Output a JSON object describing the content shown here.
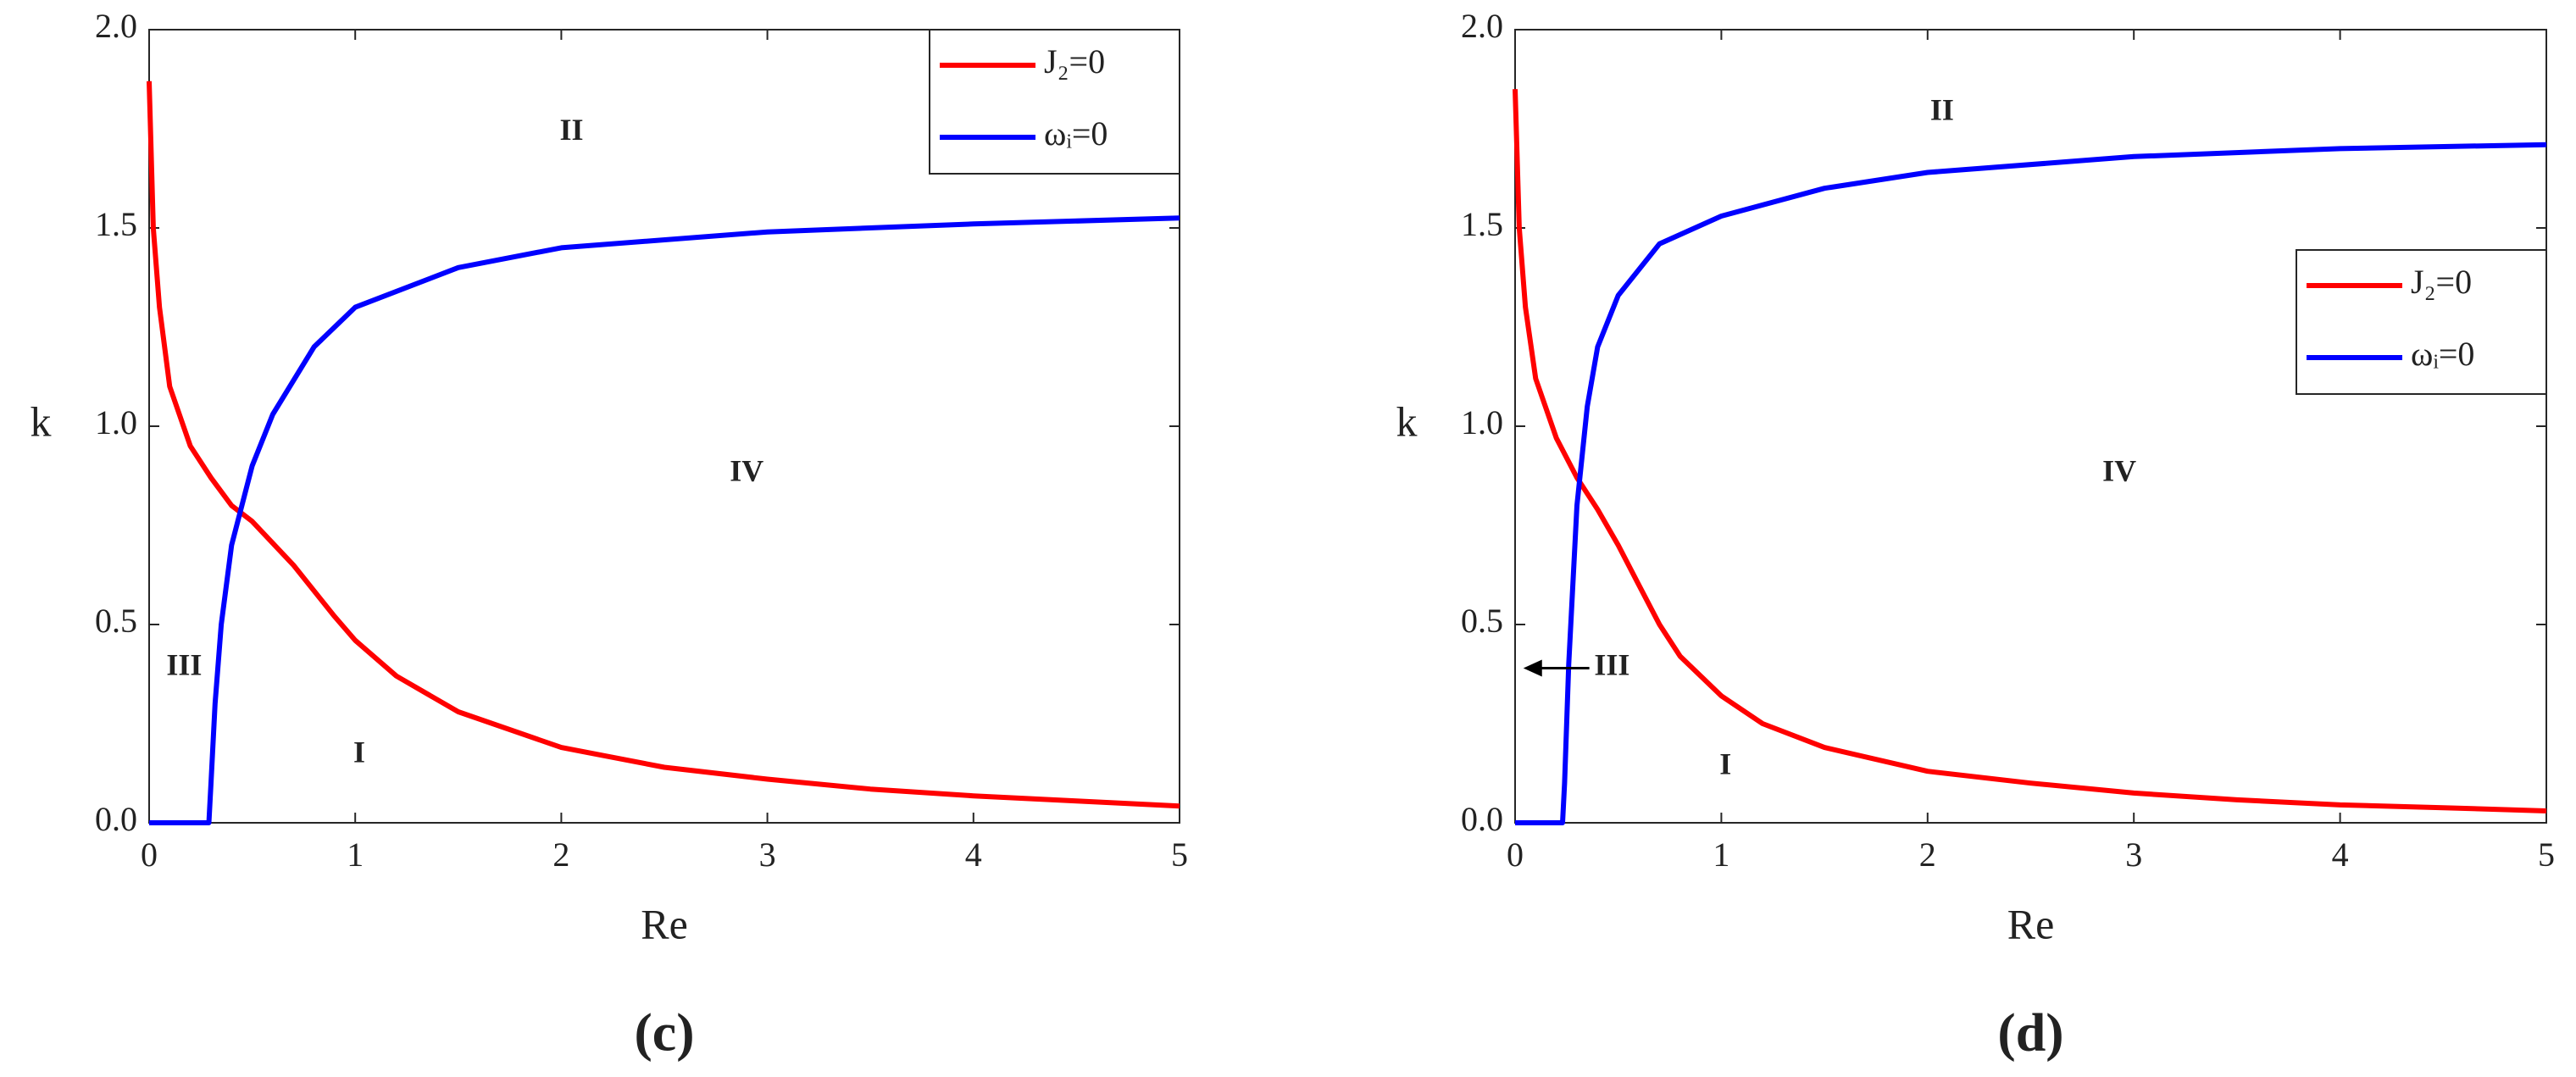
{
  "chart_data": [
    {
      "type": "line",
      "caption": "(c)",
      "x_label": "Re",
      "y_label": "k",
      "xlim": [
        0,
        5
      ],
      "xticks": [
        0,
        1,
        2,
        3,
        4,
        5
      ],
      "ylim": [
        0,
        2
      ],
      "yticks": [
        {
          "value": 0,
          "label": "0.0"
        },
        {
          "value": 0.5,
          "label": "0.5"
        },
        {
          "value": 1,
          "label": "1.0"
        },
        {
          "value": 1.5,
          "label": "1.5"
        },
        {
          "value": 2,
          "label": "2.0"
        }
      ],
      "legend": "upper right",
      "annotations": [
        "II",
        "III",
        "I",
        "IV"
      ],
      "series": [
        {
          "name": "J₂=0",
          "color": "#ff0000",
          "x": [
            0,
            0.02,
            0.05,
            0.1,
            0.2,
            0.3,
            0.4,
            0.5,
            0.7,
            0.9,
            1.0,
            1.2,
            1.5,
            2,
            2.5,
            3,
            3.5,
            4,
            4.5,
            5
          ],
          "values": [
            1.87,
            1.5,
            1.3,
            1.1,
            0.95,
            0.87,
            0.8,
            0.76,
            0.65,
            0.52,
            0.46,
            0.37,
            0.28,
            0.19,
            0.14,
            0.11,
            0.085,
            0.068,
            0.055,
            0.042
          ]
        },
        {
          "name": "ωᵢ=0",
          "color": "#0000ff",
          "x": [
            0,
            0.29,
            0.3,
            0.32,
            0.35,
            0.4,
            0.5,
            0.6,
            0.8,
            1,
            1.5,
            2,
            3,
            4,
            5
          ],
          "values": [
            0,
            0,
            0.1,
            0.3,
            0.5,
            0.7,
            0.9,
            1.03,
            1.2,
            1.3,
            1.4,
            1.45,
            1.49,
            1.51,
            1.525
          ]
        }
      ]
    },
    {
      "type": "line",
      "caption": "(d)",
      "x_label": "Re",
      "y_label": "k",
      "xlim": [
        0,
        5
      ],
      "xticks": [
        0,
        1,
        2,
        3,
        4,
        5
      ],
      "ylim": [
        0,
        2
      ],
      "yticks": [
        {
          "value": 0,
          "label": "0.0"
        },
        {
          "value": 0.5,
          "label": "0.5"
        },
        {
          "value": 1,
          "label": "1.0"
        },
        {
          "value": 1.5,
          "label": "1.5"
        },
        {
          "value": 2,
          "label": "2.0"
        }
      ],
      "legend": "center right",
      "annotations": [
        "II",
        "III",
        "I",
        "IV"
      ],
      "series": [
        {
          "name": "J₂=0",
          "color": "#ff0000",
          "x": [
            0,
            0.02,
            0.05,
            0.1,
            0.2,
            0.3,
            0.4,
            0.5,
            0.6,
            0.7,
            0.8,
            1.0,
            1.2,
            1.5,
            2,
            2.5,
            3,
            3.5,
            4,
            4.5,
            5
          ],
          "values": [
            1.85,
            1.5,
            1.3,
            1.12,
            0.97,
            0.87,
            0.79,
            0.7,
            0.6,
            0.5,
            0.42,
            0.32,
            0.25,
            0.19,
            0.13,
            0.1,
            0.075,
            0.058,
            0.045,
            0.038,
            0.03
          ]
        },
        {
          "name": "ωᵢ=0",
          "color": "#0000ff",
          "x": [
            0,
            0.23,
            0.24,
            0.26,
            0.3,
            0.35,
            0.4,
            0.5,
            0.7,
            1,
            1.5,
            2,
            3,
            4,
            5
          ],
          "values": [
            0,
            0,
            0.1,
            0.4,
            0.8,
            1.05,
            1.2,
            1.33,
            1.46,
            1.53,
            1.6,
            1.64,
            1.68,
            1.7,
            1.71
          ]
        }
      ]
    }
  ]
}
